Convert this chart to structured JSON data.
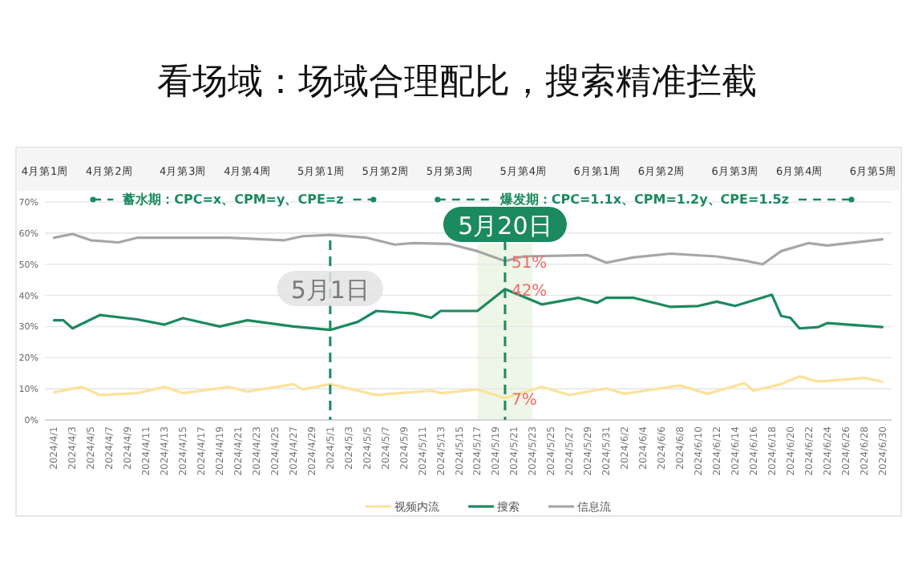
{
  "chart_data": {
    "type": "line",
    "title": "看场域：场域合理配比，搜索精准拦截",
    "xlim": [
      "2024-03-31",
      "2024-07-01"
    ],
    "xticks": [
      {
        "value": "2024-04-01",
        "label": "2024/4/1"
      },
      {
        "value": "2024-04-03",
        "label": "2024/4/3"
      },
      {
        "value": "2024-04-05",
        "label": "2024/4/5"
      },
      {
        "value": "2024-04-07",
        "label": "2024/4/7"
      },
      {
        "value": "2024-04-09",
        "label": "2024/4/9"
      },
      {
        "value": "2024-04-11",
        "label": "2024/4/11"
      },
      {
        "value": "2024-04-13",
        "label": "2024/4/13"
      },
      {
        "value": "2024-04-15",
        "label": "2024/4/15"
      },
      {
        "value": "2024-04-17",
        "label": "2024/4/17"
      },
      {
        "value": "2024-04-19",
        "label": "2024/4/19"
      },
      {
        "value": "2024-04-21",
        "label": "2024/4/21"
      },
      {
        "value": "2024-04-23",
        "label": "2024/4/23"
      },
      {
        "value": "2024-04-25",
        "label": "2024/4/25"
      },
      {
        "value": "2024-04-27",
        "label": "2024/4/27"
      },
      {
        "value": "2024-04-29",
        "label": "2024/4/29"
      },
      {
        "value": "2024-05-01",
        "label": "2024/5/1"
      },
      {
        "value": "2024-05-03",
        "label": "2024/5/3"
      },
      {
        "value": "2024-05-05",
        "label": "2024/5/5"
      },
      {
        "value": "2024-05-07",
        "label": "2024/5/7"
      },
      {
        "value": "2024-05-09",
        "label": "2024/5/9"
      },
      {
        "value": "2024-05-11",
        "label": "2024/5/11"
      },
      {
        "value": "2024-05-13",
        "label": "2024/5/13"
      },
      {
        "value": "2024-05-15",
        "label": "2024/5/15"
      },
      {
        "value": "2024-05-17",
        "label": "2024/5/17"
      },
      {
        "value": "2024-05-19",
        "label": "2024/5/19"
      },
      {
        "value": "2024-05-21",
        "label": "2024/5/21"
      },
      {
        "value": "2024-05-23",
        "label": "2024/5/23"
      },
      {
        "value": "2024-05-25",
        "label": "2024/5/25"
      },
      {
        "value": "2024-05-27",
        "label": "2024/5/27"
      },
      {
        "value": "2024-05-29",
        "label": "2024/5/29"
      },
      {
        "value": "2024-05-31",
        "label": "2024/5/31"
      },
      {
        "value": "2024-06-02",
        "label": "2024/6/2"
      },
      {
        "value": "2024-06-04",
        "label": "2024/6/4"
      },
      {
        "value": "2024-06-06",
        "label": "2024/6/6"
      },
      {
        "value": "2024-06-08",
        "label": "2024/6/8"
      },
      {
        "value": "2024-06-10",
        "label": "2024/6/10"
      },
      {
        "value": "2024-06-12",
        "label": "2024/6/12"
      },
      {
        "value": "2024-06-14",
        "label": "2024/6/14"
      },
      {
        "value": "2024-06-16",
        "label": "2024/6/16"
      },
      {
        "value": "2024-06-18",
        "label": "2024/6/18"
      },
      {
        "value": "2024-06-20",
        "label": "2024/6/20"
      },
      {
        "value": "2024-06-22",
        "label": "2024/6/22"
      },
      {
        "value": "2024-06-24",
        "label": "2024/6/24"
      },
      {
        "value": "2024-06-26",
        "label": "2024/6/26"
      },
      {
        "value": "2024-06-28",
        "label": "2024/6/28"
      },
      {
        "value": "2024-06-30",
        "label": "2024/6/30"
      }
    ],
    "x2lim": [
      "2024-03-31",
      "2024-07-01"
    ],
    "x2ticks": [
      {
        "value": "2024-03-31",
        "label": "4月第1周"
      },
      {
        "value": "2024-04-07",
        "label": "4月第2周"
      },
      {
        "value": "2024-04-15",
        "label": "4月第3周"
      },
      {
        "value": "2024-04-22",
        "label": "4月第4周"
      },
      {
        "value": "2024-04-30",
        "label": "5月第1周"
      },
      {
        "value": "2024-05-07",
        "label": "5月第2周"
      },
      {
        "value": "2024-05-14",
        "label": "5月第3周"
      },
      {
        "value": "2024-05-22",
        "label": "5月第4周"
      },
      {
        "value": "2024-05-30",
        "label": "6月第1周"
      },
      {
        "value": "2024-06-06",
        "label": "6月第2周"
      },
      {
        "value": "2024-06-14",
        "label": "6月第3周"
      },
      {
        "value": "2024-06-21",
        "label": "6月第4周"
      },
      {
        "value": "2024-06-29",
        "label": "6月第5周"
      }
    ],
    "ylim": [
      0,
      70
    ],
    "yticks": [
      {
        "value": 0,
        "label": "0%"
      },
      {
        "value": 10,
        "label": "10%"
      },
      {
        "value": 20,
        "label": "20%"
      },
      {
        "value": 30,
        "label": "30%"
      },
      {
        "value": 40,
        "label": "40%"
      },
      {
        "value": 50,
        "label": "50%"
      },
      {
        "value": 60,
        "label": "60%"
      },
      {
        "value": 70,
        "label": "70%"
      }
    ],
    "grid": "y",
    "legend": "bottom",
    "marker": "none",
    "line_style": "solid",
    "series": [
      {
        "name": "视频内流",
        "color": "#fce29a",
        "x": [
          "2024-04-01",
          "2024-04-04",
          "2024-04-06",
          "2024-04-10",
          "2024-04-13",
          "2024-04-15",
          "2024-04-20",
          "2024-04-22",
          "2024-04-27",
          "2024-04-28",
          "2024-05-01",
          "2024-05-06",
          "2024-05-12",
          "2024-05-13",
          "2024-05-17",
          "2024-05-20",
          "2024-05-24",
          "2024-05-27",
          "2024-05-31",
          "2024-06-02",
          "2024-06-08",
          "2024-06-11",
          "2024-06-15",
          "2024-06-16",
          "2024-06-19",
          "2024-06-21",
          "2024-06-23",
          "2024-06-28",
          "2024-06-30"
        ],
        "values": [
          8.9,
          10.6,
          8,
          8.6,
          10.6,
          8.6,
          10.6,
          9.1,
          11.5,
          9.8,
          11.5,
          8,
          9.4,
          8.6,
          9.8,
          7,
          10.6,
          8,
          10.1,
          8.4,
          11.1,
          8.4,
          11.8,
          9.4,
          11.5,
          14,
          12.3,
          13.5,
          12.3
        ]
      },
      {
        "name": "搜索",
        "color": "#1b8a5e",
        "x": [
          "2024-04-01",
          "2024-04-02",
          "2024-04-03",
          "2024-04-06",
          "2024-04-10",
          "2024-04-13",
          "2024-04-15",
          "2024-04-19",
          "2024-04-22",
          "2024-04-27",
          "2024-05-01",
          "2024-05-04",
          "2024-05-06",
          "2024-05-10",
          "2024-05-12",
          "2024-05-13",
          "2024-05-17",
          "2024-05-20",
          "2024-05-24",
          "2024-05-28",
          "2024-05-30",
          "2024-05-31",
          "2024-06-03",
          "2024-06-07",
          "2024-06-10",
          "2024-06-12",
          "2024-06-14",
          "2024-06-18",
          "2024-06-19",
          "2024-06-20",
          "2024-06-21",
          "2024-06-23",
          "2024-06-24",
          "2024-06-30"
        ],
        "values": [
          32,
          32,
          29.4,
          33.7,
          32.3,
          30.6,
          32.7,
          30,
          32,
          30,
          28.9,
          31.5,
          35,
          34.2,
          32.8,
          35,
          35,
          42,
          37.1,
          39.2,
          37.6,
          39.2,
          39.2,
          36.3,
          36.6,
          38,
          36.6,
          40.2,
          33.4,
          32.8,
          29.4,
          29.8,
          31.1,
          29.8
        ]
      },
      {
        "name": "信息流",
        "color": "#a6a6a6",
        "x": [
          "2024-04-01",
          "2024-04-03",
          "2024-04-05",
          "2024-04-08",
          "2024-04-10",
          "2024-04-20",
          "2024-04-26",
          "2024-04-28",
          "2024-05-01",
          "2024-05-05",
          "2024-05-08",
          "2024-05-10",
          "2024-05-14",
          "2024-05-17",
          "2024-05-20",
          "2024-05-22",
          "2024-05-29",
          "2024-05-31",
          "2024-06-03",
          "2024-06-07",
          "2024-06-12",
          "2024-06-15",
          "2024-06-17",
          "2024-06-19",
          "2024-06-22",
          "2024-06-24",
          "2024-06-30"
        ],
        "values": [
          58.5,
          59.7,
          57.7,
          57,
          58.5,
          58.5,
          57.7,
          59,
          59.4,
          58.5,
          56.3,
          56.8,
          56.5,
          54.2,
          51,
          52.5,
          52.9,
          50.5,
          52.2,
          53.4,
          52.5,
          51.2,
          50,
          54.2,
          56.8,
          56,
          58
        ]
      }
    ],
    "ref_lines": [
      {
        "axis": "x",
        "value": "2024-05-01",
        "label": "5月1日",
        "color": "#1b8a5e",
        "line_style": "dashed"
      },
      {
        "axis": "x",
        "value": "2024-05-20",
        "label": "5月20日",
        "color": "#1b8a5e",
        "line_style": "dashed"
      }
    ],
    "bands": [
      {
        "axis": "x",
        "from": "2024-05-17",
        "to": "2024-05-23",
        "color": "#eef6e8"
      }
    ],
    "annotations": [
      "蓄水期：CPC=x、CPM=y、CPE=z",
      "爆发期：CPC=1.1x、CPM=1.2y、CPE=1.5z",
      {
        "text": "51%",
        "x": "2024-05-20",
        "y": 51
      },
      {
        "text": "42%",
        "x": "2024-05-20",
        "y": 42
      },
      {
        "text": "7%",
        "x": "2024-05-20",
        "y": 7
      }
    ]
  }
}
